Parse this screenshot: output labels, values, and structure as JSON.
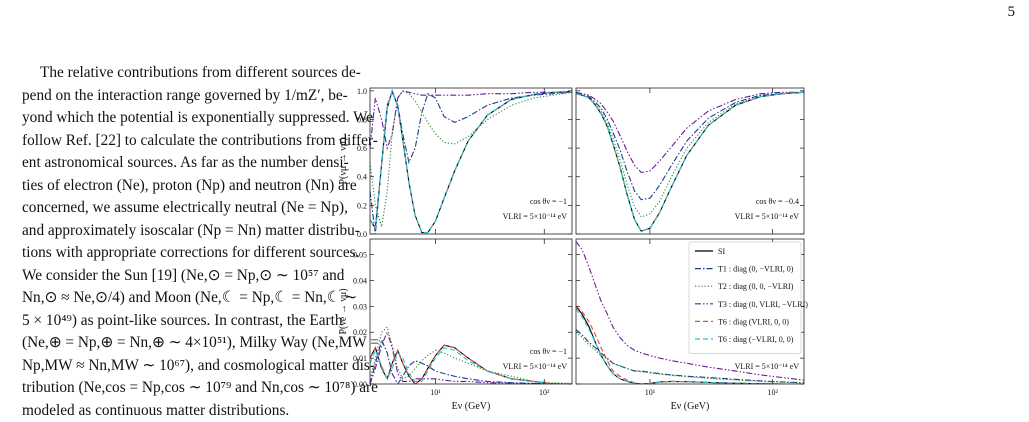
{
  "page_number": "5",
  "paragraph": [
    "The relative contributions from different sources de-",
    "pend on the interaction range governed by 1/mZ′, be-",
    "yond which the potential is exponentially suppressed. We",
    "follow Ref. [22] to calculate the contributions from differ-",
    "ent astronomical sources. As far as the number densi-",
    "ties of electron (Ne), proton (Np) and neutron (Nn) are",
    "concerned, we assume electrically neutral (Ne = Np),",
    "and approximately isoscalar (Np = Nn) matter distribu-",
    "tions with appropriate corrections for different sources.",
    "We consider the Sun [19] (Ne,⊙ = Np,⊙ ∼ 10⁵⁷ and",
    "Nn,⊙ ≈ Ne,⊙/4) and Moon (Ne,☾ = Np,☾ = Nn,☾ ∼",
    "5 × 10⁴⁹) as point-like sources. In contrast, the Earth",
    "(Ne,⊕ = Np,⊕ = Nn,⊕ ∼ 4×10⁵¹), Milky Way (Ne,MW =",
    "Np,MW ≈ Nn,MW ∼ 10⁶⁷), and cosmological matter dis-",
    "tribution (Ne,cos = Np,cos ∼ 10⁷⁹ and Nn,cos ∼ 10⁷⁸) are",
    "modeled as continuous matter distributions."
  ],
  "chart_data": [
    {
      "type": "line",
      "xlog": true,
      "ylabel": "P(νμ → νμ)",
      "annotations": [
        "cos θν = −1",
        "VLRI = 5×10⁻¹⁴ eV"
      ],
      "x": [
        2.5,
        2.8,
        3.2,
        3.6,
        4,
        4.5,
        5,
        5.7,
        6.5,
        7.5,
        8.5,
        10,
        12,
        15,
        20,
        30,
        50,
        80,
        120,
        180
      ],
      "xlim": [
        2.5,
        180
      ],
      "xticks": [
        10,
        100
      ],
      "ylim": [
        0,
        1.02
      ],
      "yticks": [
        {
          "value": 0,
          "label": "0.0"
        },
        0.2,
        0.4,
        0.6,
        0.8,
        {
          "value": 1,
          "label": "1.0"
        }
      ],
      "series": [
        {
          "color": "#000000",
          "dash": "solid",
          "values": [
            0.1,
            0.04,
            0.49,
            0.88,
            1.0,
            0.89,
            0.66,
            0.36,
            0.13,
            0.01,
            0.01,
            0.09,
            0.25,
            0.44,
            0.65,
            0.83,
            0.94,
            0.975,
            0.99,
            0.995
          ]
        },
        {
          "color": "#1f3a93",
          "dash": "dashdot",
          "values": [
            0.3,
            0.0,
            0.5,
            0.9,
            0.99,
            0.9,
            0.7,
            0.5,
            0.6,
            0.85,
            0.98,
            0.95,
            0.82,
            0.78,
            0.82,
            0.9,
            0.95,
            0.97,
            0.98,
            0.99
          ]
        },
        {
          "color": "#2a8a2a",
          "dash": "dotted",
          "values": [
            0.5,
            0.2,
            0.05,
            0.3,
            0.7,
            0.95,
            1.0,
            0.98,
            0.93,
            0.85,
            0.78,
            0.7,
            0.64,
            0.63,
            0.68,
            0.8,
            0.9,
            0.95,
            0.97,
            0.99
          ]
        },
        {
          "color": "#6a1b9a",
          "dash": "dashdotdot",
          "values": [
            0.6,
            0.95,
            0.8,
            0.6,
            0.7,
            0.95,
            1.0,
            0.99,
            0.98,
            0.97,
            0.97,
            0.97,
            0.97,
            0.97,
            0.97,
            0.98,
            0.98,
            0.99,
            0.99,
            0.99
          ]
        },
        {
          "color": "#e8443a",
          "dash": "dashed",
          "values": [
            0.1,
            0.04,
            0.49,
            0.88,
            1.0,
            0.89,
            0.66,
            0.36,
            0.13,
            0.01,
            0.01,
            0.09,
            0.25,
            0.44,
            0.65,
            0.83,
            0.94,
            0.975,
            0.99,
            0.995
          ]
        },
        {
          "color": "#1fc7d4",
          "dash": "dashed",
          "values": [
            0.1,
            0.04,
            0.49,
            0.88,
            1.0,
            0.89,
            0.66,
            0.36,
            0.13,
            0.01,
            0.01,
            0.09,
            0.25,
            0.44,
            0.65,
            0.83,
            0.94,
            0.975,
            0.99,
            0.995
          ]
        }
      ]
    },
    {
      "type": "line",
      "xlog": true,
      "annotations": [
        "cos θν = −0.4",
        "VLRI = 5×10⁻¹⁴ eV"
      ],
      "x": [
        2.5,
        2.8,
        3.2,
        3.6,
        4,
        4.5,
        5,
        5.7,
        6.5,
        7.5,
        8.5,
        10,
        12,
        15,
        20,
        30,
        50,
        80,
        120,
        180
      ],
      "xlim": [
        2.5,
        180
      ],
      "xticks": [
        10,
        100
      ],
      "ylim": [
        0,
        1.02
      ],
      "yticks": [
        0,
        0.2,
        0.4,
        0.6,
        0.8,
        1
      ],
      "series": [
        {
          "color": "#000000",
          "dash": "solid",
          "values": [
            0.98,
            0.97,
            0.95,
            0.9,
            0.84,
            0.75,
            0.63,
            0.47,
            0.28,
            0.1,
            0.02,
            0.04,
            0.15,
            0.33,
            0.55,
            0.76,
            0.9,
            0.96,
            0.98,
            0.99
          ]
        },
        {
          "color": "#1f3a93",
          "dash": "dashdot",
          "values": [
            0.98,
            0.98,
            0.96,
            0.92,
            0.88,
            0.8,
            0.71,
            0.59,
            0.44,
            0.3,
            0.24,
            0.25,
            0.34,
            0.48,
            0.65,
            0.81,
            0.92,
            0.97,
            0.98,
            0.99
          ]
        },
        {
          "color": "#2a8a2a",
          "dash": "dotted",
          "values": [
            0.98,
            0.97,
            0.95,
            0.91,
            0.86,
            0.77,
            0.67,
            0.52,
            0.35,
            0.19,
            0.12,
            0.14,
            0.23,
            0.4,
            0.6,
            0.78,
            0.91,
            0.96,
            0.98,
            0.99
          ]
        },
        {
          "color": "#6a1b9a",
          "dash": "dashdotdot",
          "values": [
            0.99,
            0.98,
            0.97,
            0.94,
            0.91,
            0.85,
            0.79,
            0.69,
            0.58,
            0.48,
            0.43,
            0.44,
            0.51,
            0.61,
            0.74,
            0.86,
            0.94,
            0.98,
            0.99,
            0.99
          ]
        },
        {
          "color": "#e8443a",
          "dash": "dashed",
          "values": [
            0.98,
            0.97,
            0.95,
            0.9,
            0.84,
            0.75,
            0.63,
            0.47,
            0.28,
            0.1,
            0.02,
            0.04,
            0.15,
            0.33,
            0.55,
            0.76,
            0.9,
            0.96,
            0.98,
            0.99
          ]
        },
        {
          "color": "#1fc7d4",
          "dash": "dashed",
          "values": [
            0.98,
            0.97,
            0.95,
            0.9,
            0.84,
            0.75,
            0.63,
            0.47,
            0.28,
            0.1,
            0.02,
            0.04,
            0.15,
            0.33,
            0.55,
            0.76,
            0.9,
            0.96,
            0.98,
            0.99
          ]
        }
      ]
    },
    {
      "type": "line",
      "xlog": true,
      "ylabel": "P(νe → νμ)",
      "xlabel": "Eν (GeV)",
      "annotations": [
        "cos θν = −1",
        "VLRI = 5×10⁻¹⁴ eV"
      ],
      "x": [
        2.5,
        2.8,
        3.2,
        3.6,
        4,
        4.5,
        5,
        5.7,
        6.5,
        7.5,
        8.5,
        10,
        12,
        15,
        20,
        30,
        50,
        80,
        120,
        180
      ],
      "xlim": [
        2.5,
        180
      ],
      "xticks": [
        {
          "value": 10,
          "label": "10¹"
        },
        {
          "value": 100,
          "label": "10²"
        }
      ],
      "ylim": [
        0,
        0.056
      ],
      "yticks": [
        {
          "value": 0,
          "label": "0.00"
        },
        0.01,
        0.02,
        0.03,
        0.04,
        0.05
      ],
      "series": [
        {
          "color": "#000000",
          "dash": "solid",
          "values": [
            0.01,
            0.014,
            0.006,
            0.002,
            0.008,
            0.013,
            0.008,
            0.003,
            0.0,
            0.002,
            0.006,
            0.011,
            0.015,
            0.014,
            0.01,
            0.005,
            0.002,
            0.001,
            0.0,
            0.0
          ]
        },
        {
          "color": "#1f3a93",
          "dash": "dashdot",
          "values": [
            0.0,
            0.008,
            0.017,
            0.012,
            0.004,
            0.0,
            0.003,
            0.007,
            0.009,
            0.008,
            0.007,
            0.005,
            0.004,
            0.003,
            0.002,
            0.001,
            0.0005,
            0.0002,
            0.0001,
            0.0
          ]
        },
        {
          "color": "#2a8a2a",
          "dash": "dotted",
          "values": [
            0.002,
            0.01,
            0.02,
            0.022,
            0.015,
            0.006,
            0.002,
            0.003,
            0.006,
            0.009,
            0.011,
            0.013,
            0.012,
            0.01,
            0.008,
            0.005,
            0.003,
            0.001,
            0.0005,
            0.0002
          ]
        },
        {
          "color": "#6a1b9a",
          "dash": "dashdotdot",
          "values": [
            0.0,
            0.006,
            0.015,
            0.02,
            0.014,
            0.004,
            0.001,
            0.001,
            0.002,
            0.002,
            0.002,
            0.002,
            0.0015,
            0.001,
            0.001,
            0.0005,
            0.0003,
            0.0002,
            0.0001,
            0.0
          ]
        },
        {
          "color": "#e8443a",
          "dash": "dashed",
          "values": [
            0.01,
            0.014,
            0.006,
            0.002,
            0.008,
            0.013,
            0.008,
            0.003,
            0.0,
            0.002,
            0.006,
            0.011,
            0.015,
            0.014,
            0.01,
            0.005,
            0.002,
            0.001,
            0.0,
            0.0
          ]
        },
        {
          "color": "#1fc7d4",
          "dash": "dashed",
          "values": [
            0.008,
            0.013,
            0.007,
            0.002,
            0.006,
            0.012,
            0.01,
            0.004,
            0.001,
            0.001,
            0.005,
            0.01,
            0.014,
            0.013,
            0.009,
            0.005,
            0.002,
            0.001,
            0.0,
            0.0
          ]
        }
      ]
    },
    {
      "type": "line",
      "xlog": true,
      "xlabel": "Eν (GeV)",
      "legend": "upper right",
      "annotations": [
        "cos θν = −0.4",
        "VLRI = 5×10⁻¹⁴ eV"
      ],
      "x": [
        2.5,
        2.8,
        3.2,
        3.6,
        4,
        4.5,
        5,
        5.7,
        6.5,
        7.5,
        8.5,
        10,
        12,
        15,
        20,
        30,
        50,
        80,
        120,
        180
      ],
      "xlim": [
        2.5,
        180
      ],
      "xticks": [
        {
          "value": 10,
          "label": "10¹"
        },
        {
          "value": 100,
          "label": "10²"
        }
      ],
      "ylim": [
        0,
        0.056
      ],
      "yticks": [
        0,
        0.01,
        0.02,
        0.03,
        0.04,
        0.05
      ],
      "series": [
        {
          "name": "SI",
          "color": "#000000",
          "dash": "solid",
          "values": [
            0.03,
            0.027,
            0.022,
            0.016,
            0.011,
            0.007,
            0.004,
            0.002,
            0.001,
            0.0003,
            0.0,
            0.0002,
            0.0008,
            0.001,
            0.0009,
            0.0006,
            0.0003,
            0.0001,
            0.0,
            0.0
          ]
        },
        {
          "name": "T1 : diag (0, −VLRI, 0)",
          "color": "#1f3a93",
          "dash": "dashdot",
          "values": [
            0.021,
            0.019,
            0.016,
            0.014,
            0.012,
            0.01,
            0.008,
            0.007,
            0.006,
            0.005,
            0.005,
            0.0045,
            0.004,
            0.0035,
            0.003,
            0.0025,
            0.0018,
            0.0012,
            0.0008,
            0.0005
          ]
        },
        {
          "name": "T2 : diag (0, 0, −VLRI)",
          "color": "#2a8a2a",
          "dash": "dotted",
          "values": [
            0.02,
            0.018,
            0.015,
            0.013,
            0.011,
            0.0095,
            0.008,
            0.007,
            0.006,
            0.0052,
            0.0048,
            0.0043,
            0.0038,
            0.0033,
            0.0028,
            0.0022,
            0.0015,
            0.001,
            0.0007,
            0.0004
          ]
        },
        {
          "name": "T3 : diag (0, VLRI, −VLRI)",
          "color": "#6a1b9a",
          "dash": "dashdotdot",
          "values": [
            0.055,
            0.052,
            0.045,
            0.038,
            0.032,
            0.027,
            0.022,
            0.018,
            0.015,
            0.013,
            0.012,
            0.011,
            0.01,
            0.009,
            0.008,
            0.0065,
            0.005,
            0.0035,
            0.0025,
            0.0015
          ]
        },
        {
          "name": "T6 : diag (VLRI, 0, 0)",
          "color": "#e8443a",
          "dash": "dashed",
          "values": [
            0.03,
            0.028,
            0.024,
            0.019,
            0.014,
            0.009,
            0.005,
            0.003,
            0.0015,
            0.0005,
            0.0,
            0.0002,
            0.0007,
            0.001,
            0.0009,
            0.0006,
            0.0003,
            0.0001,
            0.0,
            0.0
          ]
        },
        {
          "name": "T6 : diag (−VLRI, 0, 0)",
          "color": "#1fc7d4",
          "dash": "dashed",
          "values": [
            0.029,
            0.026,
            0.021,
            0.016,
            0.011,
            0.007,
            0.004,
            0.002,
            0.001,
            0.0003,
            0.0,
            0.0002,
            0.0008,
            0.001,
            0.0009,
            0.0006,
            0.0003,
            0.0001,
            0.0,
            0.0
          ]
        }
      ]
    }
  ]
}
